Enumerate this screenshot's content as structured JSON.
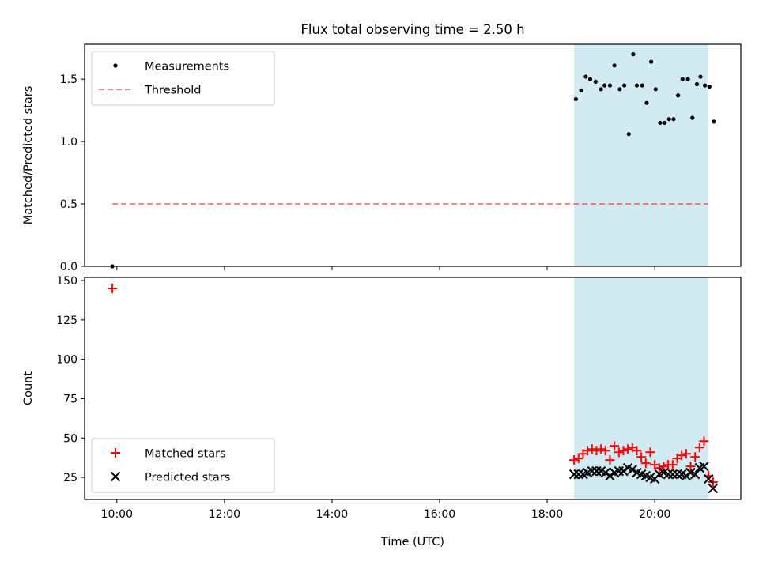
{
  "title": "Flux total observing time = 2.50 h",
  "chart_data": [
    {
      "type": "scatter",
      "ylabel": "Matched/Predicted stars",
      "xlabel": "",
      "xlim": [
        "09:24",
        "21:36"
      ],
      "ylim": [
        0,
        1.78
      ],
      "grid": false,
      "legend_position": "top-left",
      "x_ticks": [
        "10:00",
        "12:00",
        "14:00",
        "16:00",
        "18:00",
        "20:00"
      ],
      "y_ticks": [
        "0.0",
        "0.5",
        "1.0",
        "1.5"
      ],
      "shaded_region": {
        "x_start": "18:30",
        "x_end": "21:00",
        "color": "#add8e6"
      },
      "threshold": {
        "name": "Threshold",
        "y": 0.5,
        "x_start": "09:55",
        "x_end": "21:00",
        "color": "#ff0000",
        "style": "dashed"
      },
      "series": [
        {
          "name": "Measurements",
          "color": "#000000",
          "marker": "dot",
          "points": [
            [
              "09:55",
              0.0
            ],
            [
              "18:32",
              1.34
            ],
            [
              "18:38",
              1.41
            ],
            [
              "18:43",
              1.52
            ],
            [
              "18:48",
              1.5
            ],
            [
              "18:54",
              1.48
            ],
            [
              "19:00",
              1.42
            ],
            [
              "19:04",
              1.45
            ],
            [
              "19:10",
              1.45
            ],
            [
              "19:15",
              1.61
            ],
            [
              "19:21",
              1.42
            ],
            [
              "19:26",
              1.45
            ],
            [
              "19:31",
              1.06
            ],
            [
              "19:36",
              1.7
            ],
            [
              "19:40",
              1.45
            ],
            [
              "19:46",
              1.45
            ],
            [
              "19:51",
              1.31
            ],
            [
              "19:56",
              1.64
            ],
            [
              "20:01",
              1.42
            ],
            [
              "20:06",
              1.15
            ],
            [
              "20:11",
              1.15
            ],
            [
              "20:16",
              1.18
            ],
            [
              "20:21",
              1.18
            ],
            [
              "20:26",
              1.37
            ],
            [
              "20:31",
              1.5
            ],
            [
              "20:37",
              1.5
            ],
            [
              "20:42",
              1.19
            ],
            [
              "20:47",
              1.46
            ],
            [
              "20:51",
              1.52
            ],
            [
              "20:56",
              1.45
            ],
            [
              "21:01",
              1.44
            ],
            [
              "21:06",
              1.16
            ]
          ]
        }
      ]
    },
    {
      "type": "scatter",
      "ylabel": "Count",
      "xlabel": "Time (UTC)",
      "xlim": [
        "09:24",
        "21:36"
      ],
      "ylim": [
        11,
        152
      ],
      "grid": false,
      "legend_position": "bottom-left",
      "x_ticks": [
        "10:00",
        "12:00",
        "14:00",
        "16:00",
        "18:00",
        "20:00"
      ],
      "y_ticks": [
        "25",
        "50",
        "75",
        "100",
        "125",
        "150"
      ],
      "shaded_region": {
        "x_start": "18:30",
        "x_end": "21:00",
        "color": "#add8e6"
      },
      "series": [
        {
          "name": "Matched stars",
          "color": "#ff0000",
          "marker": "plus",
          "points": [
            [
              "09:55",
              145
            ],
            [
              "18:30",
              36
            ],
            [
              "18:35",
              37
            ],
            [
              "18:40",
              40
            ],
            [
              "18:45",
              42
            ],
            [
              "18:50",
              43
            ],
            [
              "18:55",
              42
            ],
            [
              "19:00",
              43
            ],
            [
              "19:05",
              42
            ],
            [
              "19:10",
              36
            ],
            [
              "19:15",
              45
            ],
            [
              "19:20",
              41
            ],
            [
              "19:25",
              42
            ],
            [
              "19:30",
              43
            ],
            [
              "19:35",
              44
            ],
            [
              "19:40",
              42
            ],
            [
              "19:45",
              38
            ],
            [
              "19:50",
              34
            ],
            [
              "19:55",
              41
            ],
            [
              "20:00",
              33
            ],
            [
              "20:05",
              31
            ],
            [
              "20:10",
              32
            ],
            [
              "20:15",
              33
            ],
            [
              "20:20",
              33
            ],
            [
              "20:25",
              37
            ],
            [
              "20:30",
              39
            ],
            [
              "20:35",
              40
            ],
            [
              "20:40",
              32
            ],
            [
              "20:45",
              38
            ],
            [
              "20:50",
              44
            ],
            [
              "20:55",
              48
            ],
            [
              "21:00",
              26
            ],
            [
              "21:05",
              22
            ]
          ]
        },
        {
          "name": "Predicted stars",
          "color": "#000000",
          "marker": "x",
          "points": [
            [
              "18:30",
              27
            ],
            [
              "18:35",
              27
            ],
            [
              "18:40",
              27
            ],
            [
              "18:45",
              28
            ],
            [
              "18:50",
              29
            ],
            [
              "18:55",
              29
            ],
            [
              "19:00",
              29
            ],
            [
              "19:05",
              28
            ],
            [
              "19:10",
              26
            ],
            [
              "19:15",
              28
            ],
            [
              "19:20",
              29
            ],
            [
              "19:25",
              29
            ],
            [
              "19:30",
              31
            ],
            [
              "19:35",
              30
            ],
            [
              "19:40",
              28
            ],
            [
              "19:45",
              27
            ],
            [
              "19:50",
              26
            ],
            [
              "19:55",
              25
            ],
            [
              "20:00",
              24
            ],
            [
              "20:05",
              27
            ],
            [
              "20:10",
              28
            ],
            [
              "20:15",
              27
            ],
            [
              "20:20",
              27
            ],
            [
              "20:25",
              27
            ],
            [
              "20:30",
              27
            ],
            [
              "20:35",
              26
            ],
            [
              "20:40",
              28
            ],
            [
              "20:45",
              27
            ],
            [
              "20:50",
              31
            ],
            [
              "20:55",
              32
            ],
            [
              "21:00",
              24
            ],
            [
              "21:05",
              18
            ]
          ]
        }
      ]
    }
  ]
}
